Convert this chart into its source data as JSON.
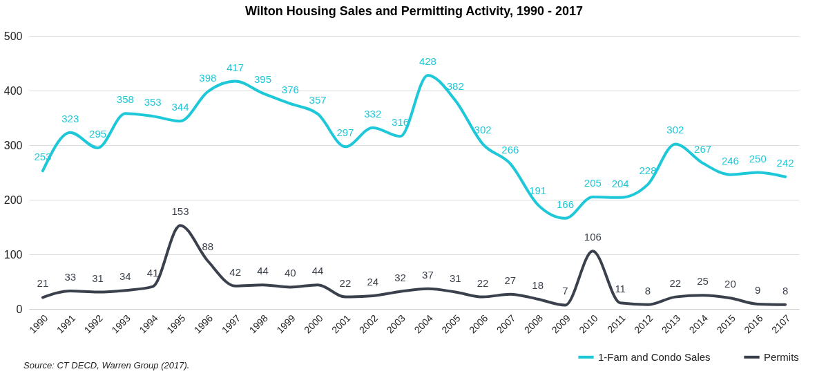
{
  "chart_data": {
    "type": "line",
    "title": "Wilton Housing Sales and Permitting Activity, 1990 - 2017",
    "categories": [
      "1990",
      "1991",
      "1992",
      "1993",
      "1994",
      "1995",
      "1996",
      "1997",
      "1998",
      "1999",
      "2000",
      "2001",
      "2002",
      "2003",
      "2004",
      "2005",
      "2006",
      "2007",
      "2008",
      "2009",
      "2010",
      "2011",
      "2012",
      "2013",
      "2014",
      "2015",
      "2016",
      "2107"
    ],
    "series": [
      {
        "name": "1-Fam and Condo Sales",
        "color": "#1ec8d8",
        "values": [
          253,
          323,
          295,
          358,
          353,
          344,
          398,
          417,
          395,
          376,
          357,
          297,
          332,
          316,
          428,
          382,
          302,
          266,
          191,
          166,
          205,
          204,
          228,
          302,
          267,
          246,
          250,
          242
        ]
      },
      {
        "name": "Permits",
        "color": "#3b414c",
        "values": [
          21,
          33,
          31,
          34,
          41,
          153,
          88,
          42,
          44,
          40,
          44,
          22,
          24,
          32,
          37,
          31,
          22,
          27,
          18,
          7,
          106,
          11,
          8,
          22,
          25,
          20,
          9,
          8
        ]
      }
    ],
    "ylim": [
      0,
      500
    ],
    "yticks": [
      0,
      100,
      200,
      300,
      400,
      500
    ],
    "grid": "y",
    "legend": "bottom right",
    "data_labels": true,
    "annotations": [
      "Source: CT DECD, Warren Group (2017)."
    ]
  }
}
